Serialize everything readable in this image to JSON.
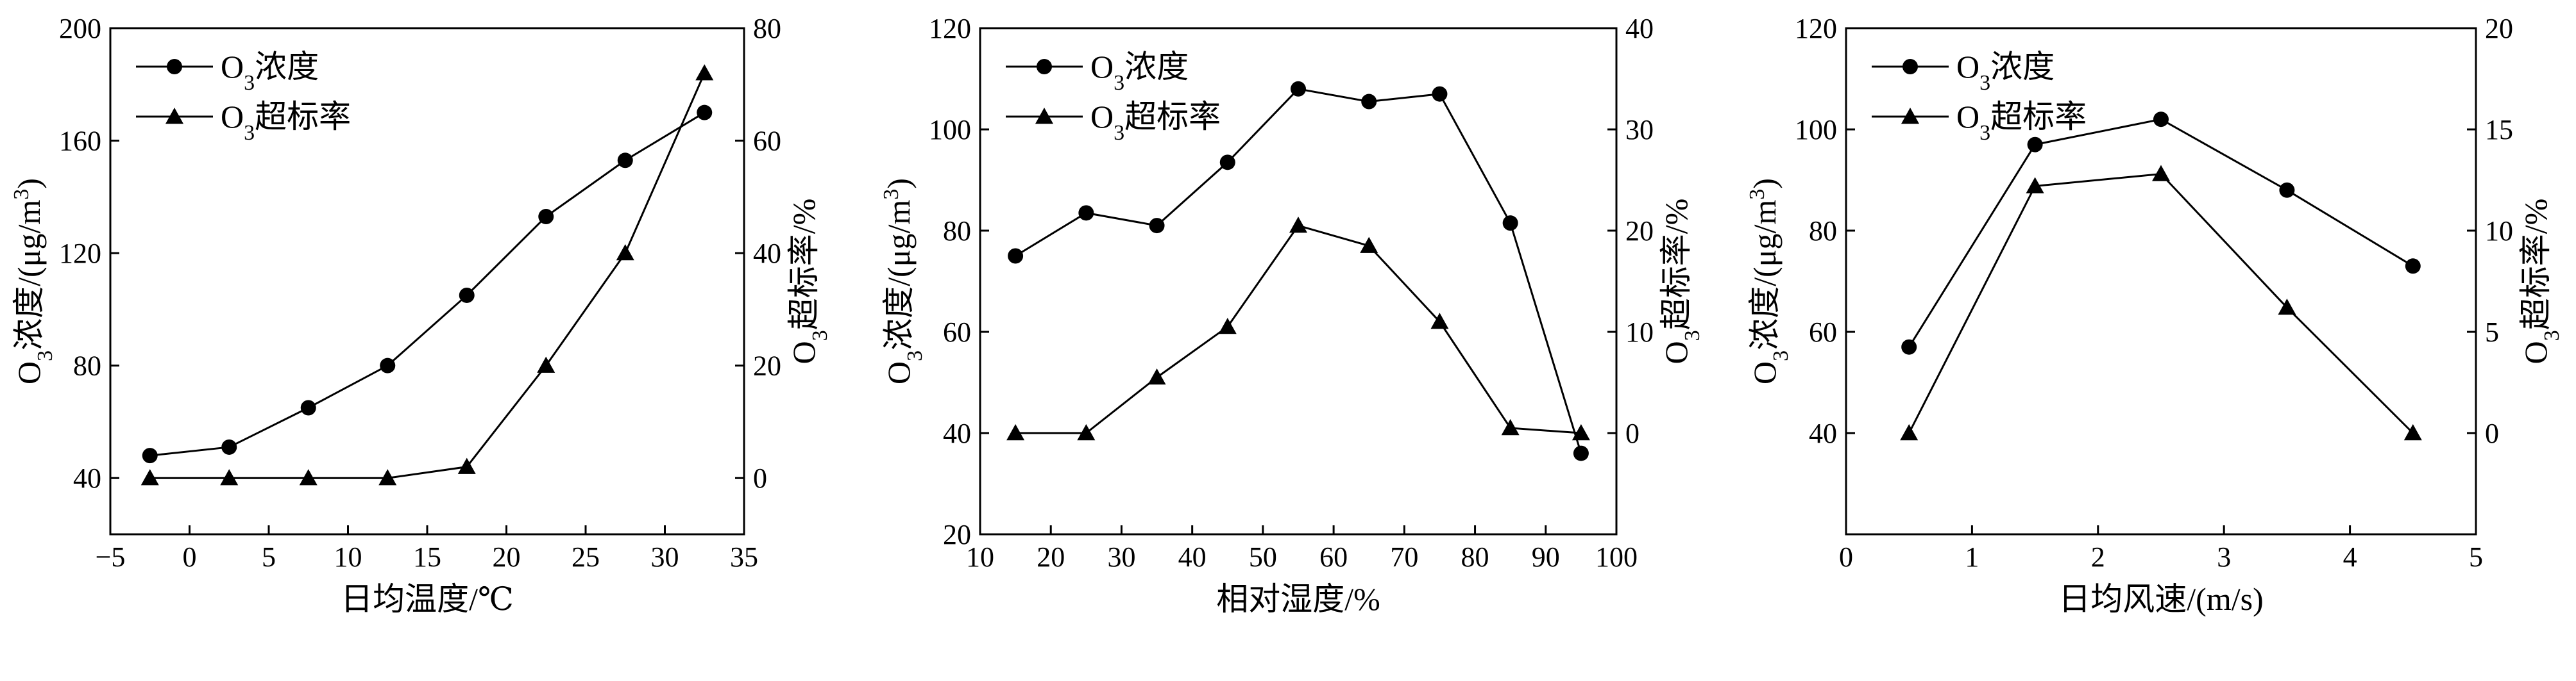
{
  "chart_data": [
    {
      "type": "line",
      "xlabel": "日均温度/℃",
      "ylabel_left": "O3浓度/(μg/m3)",
      "ylabel_left_parts": {
        "a": "O",
        "sub": "3",
        "b": "浓度/(μg/m",
        "sup": "3",
        "c": ")"
      },
      "ylabel_right": "O3超标率/%",
      "ylabel_right_parts": {
        "a": "O",
        "sub": "3",
        "b": "超标率/%"
      },
      "xlim": [
        -5,
        35
      ],
      "ylim_left": [
        20,
        200
      ],
      "ylim_right": [
        -10,
        80
      ],
      "xticks": [
        -5,
        0,
        5,
        10,
        15,
        20,
        25,
        30,
        35
      ],
      "yticks_left": [
        40,
        80,
        120,
        160,
        200
      ],
      "yticks_right": [
        0,
        20,
        40,
        60,
        80
      ],
      "legend": {
        "placement": "top-left",
        "entries": [
          {
            "a": "O",
            "sub": "3",
            "b": "浓度",
            "marker": "circle"
          },
          {
            "a": "O",
            "sub": "3",
            "b": "超标率",
            "marker": "triangle"
          }
        ]
      },
      "series": [
        {
          "name": "O3浓度",
          "axis": "left",
          "marker": "circle",
          "x": [
            -2.5,
            2.5,
            7.5,
            12.5,
            17.5,
            22.5,
            27.5,
            32.5
          ],
          "y": [
            48,
            51,
            65,
            80,
            105,
            133,
            153,
            170
          ]
        },
        {
          "name": "O3超标率",
          "axis": "right",
          "marker": "triangle",
          "x": [
            -2.5,
            2.5,
            7.5,
            12.5,
            17.5,
            22.5,
            27.5,
            32.5
          ],
          "y": [
            0,
            0,
            0,
            0,
            2,
            20,
            40,
            72
          ]
        }
      ]
    },
    {
      "type": "line",
      "xlabel": "相对湿度/%",
      "ylabel_left": "O3浓度/(μg/m3)",
      "ylabel_left_parts": {
        "a": "O",
        "sub": "3",
        "b": "浓度/(μg/m",
        "sup": "3",
        "c": ")"
      },
      "ylabel_right": "O3超标率/%",
      "ylabel_right_parts": {
        "a": "O",
        "sub": "3",
        "b": "超标率/%"
      },
      "xlim": [
        10,
        100
      ],
      "ylim_left": [
        20,
        120
      ],
      "ylim_right": [
        -10,
        40
      ],
      "xticks": [
        10,
        20,
        30,
        40,
        50,
        60,
        70,
        80,
        90,
        100
      ],
      "yticks_left": [
        20,
        40,
        60,
        80,
        100,
        120
      ],
      "yticks_right": [
        0,
        10,
        20,
        30,
        40
      ],
      "legend": {
        "placement": "top-left",
        "entries": [
          {
            "a": "O",
            "sub": "3",
            "b": "浓度",
            "marker": "circle"
          },
          {
            "a": "O",
            "sub": "3",
            "b": "超标率",
            "marker": "triangle"
          }
        ]
      },
      "series": [
        {
          "name": "O3浓度",
          "axis": "left",
          "marker": "circle",
          "x": [
            15,
            25,
            35,
            45,
            55,
            65,
            75,
            85,
            95
          ],
          "y": [
            75,
            83.5,
            81,
            93.5,
            108,
            105.5,
            107,
            81.5,
            36
          ]
        },
        {
          "name": "O3超标率",
          "axis": "right",
          "marker": "triangle",
          "x": [
            15,
            25,
            35,
            45,
            55,
            65,
            75,
            85,
            95
          ],
          "y": [
            0,
            0,
            5.5,
            10.5,
            20.5,
            18.5,
            11,
            0.5,
            0
          ]
        }
      ]
    },
    {
      "type": "line",
      "xlabel": "日均风速/(m/s)",
      "ylabel_left": "O3浓度/(μg/m3)",
      "ylabel_left_parts": {
        "a": "O",
        "sub": "3",
        "b": "浓度/(μg/m",
        "sup": "3",
        "c": ")"
      },
      "ylabel_right": "O3超标率/%",
      "ylabel_right_parts": {
        "a": "O",
        "sub": "3",
        "b": "超标率/%"
      },
      "xlim": [
        0,
        5
      ],
      "ylim_left": [
        20,
        120
      ],
      "ylim_right": [
        -5,
        20
      ],
      "xticks": [
        0,
        1,
        2,
        3,
        4,
        5
      ],
      "yticks_left": [
        40,
        60,
        80,
        100,
        120
      ],
      "yticks_right": [
        0,
        5,
        10,
        15,
        20
      ],
      "legend": {
        "placement": "top-left",
        "entries": [
          {
            "a": "O",
            "sub": "3",
            "b": "浓度",
            "marker": "circle"
          },
          {
            "a": "O",
            "sub": "3",
            "b": "超标率",
            "marker": "triangle"
          }
        ]
      },
      "series": [
        {
          "name": "O3浓度",
          "axis": "left",
          "marker": "circle",
          "x": [
            0.5,
            1.5,
            2.5,
            3.5,
            4.5
          ],
          "y": [
            57,
            97,
            102,
            88,
            73
          ]
        },
        {
          "name": "O3超标率",
          "axis": "right",
          "marker": "triangle",
          "x": [
            0.5,
            1.5,
            2.5,
            3.5,
            4.5
          ],
          "y": [
            0,
            12.2,
            12.8,
            6.2,
            0
          ]
        }
      ]
    }
  ]
}
